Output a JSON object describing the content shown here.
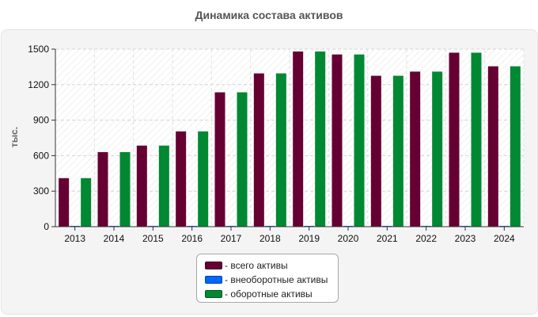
{
  "title": "Динамика состава активов",
  "chart_data": {
    "type": "bar",
    "title": "Динамика состава активов",
    "ylabel": "тыс.",
    "xlabel": "",
    "ylim": [
      0,
      1500
    ],
    "yticks": [
      0,
      300,
      600,
      900,
      1200,
      1500
    ],
    "categories": [
      "2013",
      "2014",
      "2015",
      "2016",
      "2017",
      "2018",
      "2019",
      "2020",
      "2021",
      "2022",
      "2023",
      "2024"
    ],
    "series": [
      {
        "name": "- всего активы",
        "color": "#660033",
        "values": [
          410,
          630,
          685,
          805,
          1135,
          1295,
          1480,
          1455,
          1275,
          1310,
          1470,
          1355
        ]
      },
      {
        "name": "- внеоборотные активы",
        "color": "#0066ff",
        "values": [
          0,
          0,
          0,
          0,
          0,
          0,
          0,
          0,
          0,
          0,
          0,
          0
        ]
      },
      {
        "name": "- оборотные активы",
        "color": "#008833",
        "values": [
          410,
          630,
          685,
          805,
          1135,
          1295,
          1480,
          1455,
          1275,
          1310,
          1470,
          1355
        ]
      }
    ],
    "grid": true,
    "legend_position": "bottom-center"
  }
}
